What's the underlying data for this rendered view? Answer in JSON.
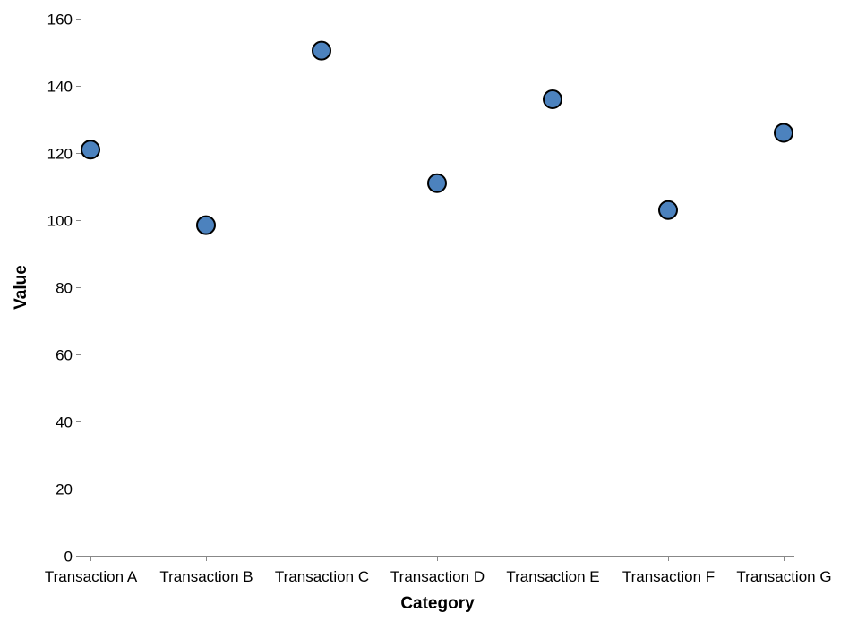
{
  "chart_data": {
    "type": "scatter",
    "categories": [
      "Transaction A",
      "Transaction B",
      "Transaction C",
      "Transaction D",
      "Transaction E",
      "Transaction F",
      "Transaction G"
    ],
    "values": [
      121,
      98.5,
      150.5,
      111,
      136,
      103,
      126
    ],
    "xlabel": "Category",
    "ylabel": "Value",
    "ylim": [
      0,
      160
    ],
    "yticks": [
      0,
      20,
      40,
      60,
      80,
      100,
      120,
      140,
      160
    ],
    "grid": false,
    "legend": "none",
    "colors": {
      "point_fill": "#4c82be",
      "point_stroke": "#000000",
      "axis": "#888888"
    }
  }
}
